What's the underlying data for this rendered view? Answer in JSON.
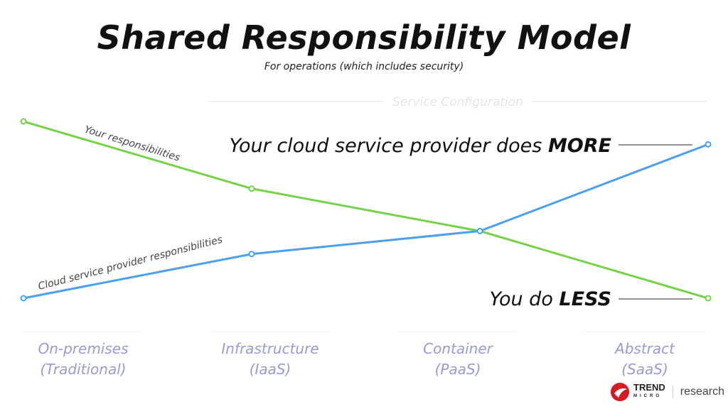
{
  "title": "Shared Responsibility Model",
  "subtitle": "For operations (which includes security)",
  "chart_data": {
    "type": "line",
    "categories_header": "Service Configuration",
    "categories": [
      {
        "line1": "On-premises",
        "line2": "(Traditional)"
      },
      {
        "line1": "Infrastructure",
        "line2": "(IaaS)"
      },
      {
        "line1": "Container",
        "line2": "(PaaS)"
      },
      {
        "line1": "Abstract",
        "line2": "(SaaS)"
      }
    ],
    "ylim": [
      0,
      1
    ],
    "series": [
      {
        "name": "Your responsibilities",
        "color": "#77d14a",
        "values": [
          1.0,
          0.62,
          0.38,
          0.0
        ]
      },
      {
        "name": "Cloud service provider responsibilities",
        "color": "#4a9ff0",
        "values": [
          0.0,
          0.25,
          0.38,
          0.87
        ]
      }
    ],
    "annotations": {
      "more_prefix": "Your cloud service provider does ",
      "more_bold": "MORE",
      "less_prefix": "You do ",
      "less_bold": "LESS"
    }
  },
  "logo": {
    "brand": "TREND",
    "brand_sub": "MICRO",
    "research": "research"
  }
}
